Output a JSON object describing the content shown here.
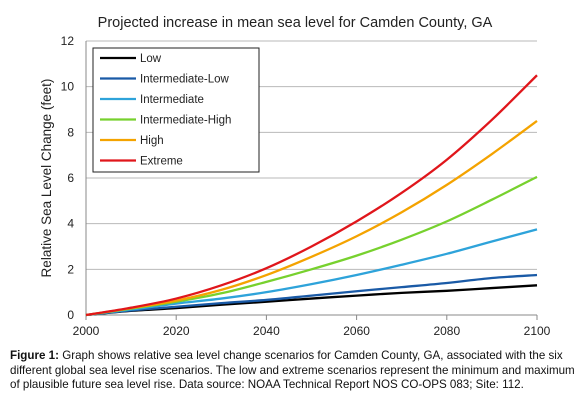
{
  "chart_data": {
    "type": "line",
    "title": "Projected increase in mean sea level for Camden County, GA",
    "xlabel": "",
    "ylabel": "Relative Sea Level Change (feet)",
    "xlim": [
      2000,
      2100
    ],
    "ylim": [
      0,
      12
    ],
    "x_ticks": [
      "2000",
      "2020",
      "2040",
      "2060",
      "2080",
      "2100"
    ],
    "y_ticks": [
      "0",
      "2",
      "4",
      "6",
      "8",
      "10",
      "12"
    ],
    "grid": "horizontal",
    "legend_position": "top-left",
    "x": [
      2000,
      2010,
      2020,
      2030,
      2040,
      2050,
      2060,
      2070,
      2080,
      2090,
      2100
    ],
    "series": [
      {
        "name": "Low",
        "color": "#000000",
        "values": [
          0,
          0.18,
          0.3,
          0.45,
          0.58,
          0.72,
          0.85,
          0.97,
          1.06,
          1.18,
          1.3
        ]
      },
      {
        "name": "Intermediate-Low",
        "color": "#1a5aa6",
        "values": [
          0,
          0.2,
          0.36,
          0.52,
          0.66,
          0.85,
          1.04,
          1.22,
          1.4,
          1.62,
          1.75
        ]
      },
      {
        "name": "Intermediate",
        "color": "#2ea3da",
        "values": [
          0,
          0.24,
          0.5,
          0.72,
          1.0,
          1.35,
          1.75,
          2.2,
          2.68,
          3.22,
          3.75
        ]
      },
      {
        "name": "Intermediate-High",
        "color": "#77d12e",
        "values": [
          0,
          0.28,
          0.58,
          0.95,
          1.45,
          2.0,
          2.6,
          3.3,
          4.1,
          5.05,
          6.05
        ]
      },
      {
        "name": "High",
        "color": "#f4a300",
        "values": [
          0,
          0.3,
          0.63,
          1.1,
          1.75,
          2.55,
          3.45,
          4.5,
          5.7,
          7.05,
          8.5
        ]
      },
      {
        "name": "Extreme",
        "color": "#e0161b",
        "values": [
          0,
          0.32,
          0.72,
          1.3,
          2.05,
          3.0,
          4.1,
          5.35,
          6.8,
          8.55,
          10.5
        ]
      }
    ]
  },
  "caption": {
    "label": "Figure 1:",
    "text": " Graph shows relative sea level change scenarios for Camden County, GA, associated with the six different global sea level rise scenarios. The low and extreme scenarios represent the minimum and maximum of plausible future sea level rise. Data source: NOAA Technical Report NOS CO-OPS 083; Site: 112."
  }
}
